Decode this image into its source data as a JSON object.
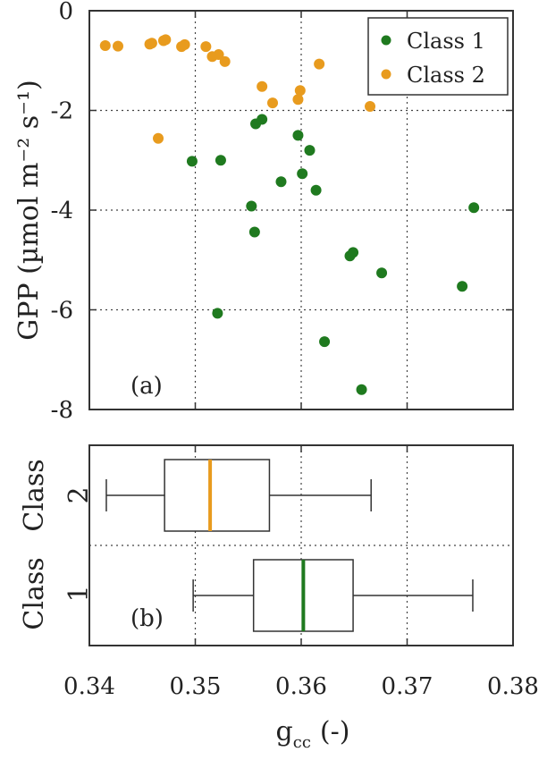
{
  "chart_data": [
    {
      "type": "scatter",
      "panel_label": "(a)",
      "ylabel": "GPP (µmol m⁻² s⁻¹)",
      "xlim": [
        0.34,
        0.38
      ],
      "ylim": [
        -8,
        0
      ],
      "xticks": [
        0.34,
        0.35,
        0.36,
        0.37,
        0.38
      ],
      "yticks": [
        -8,
        -6,
        -4,
        -2,
        0
      ],
      "ytick_labels": [
        "-8",
        "-6",
        "-4",
        "-2",
        "0"
      ],
      "grid": true,
      "legend": {
        "position": "top-right"
      },
      "series": [
        {
          "name": "Class 1",
          "color": "#1f7a1f",
          "points": [
            [
              0.3497,
              -3.02
            ],
            [
              0.3524,
              -3.0
            ],
            [
              0.3521,
              -6.07
            ],
            [
              0.3553,
              -3.92
            ],
            [
              0.3557,
              -2.27
            ],
            [
              0.3563,
              -2.18
            ],
            [
              0.3556,
              -4.44
            ],
            [
              0.3581,
              -3.43
            ],
            [
              0.3597,
              -2.5
            ],
            [
              0.3601,
              -3.27
            ],
            [
              0.3608,
              -2.8
            ],
            [
              0.3614,
              -3.6
            ],
            [
              0.3622,
              -6.64
            ],
            [
              0.3646,
              -4.92
            ],
            [
              0.3649,
              -4.85
            ],
            [
              0.3657,
              -7.6
            ],
            [
              0.3676,
              -5.26
            ],
            [
              0.3752,
              -5.53
            ],
            [
              0.3763,
              -3.95
            ]
          ]
        },
        {
          "name": "Class 2",
          "color": "#e89b1e",
          "points": [
            [
              0.3415,
              -0.7
            ],
            [
              0.3427,
              -0.71
            ],
            [
              0.3457,
              -0.67
            ],
            [
              0.3459,
              -0.65
            ],
            [
              0.347,
              -0.6
            ],
            [
              0.3472,
              -0.58
            ],
            [
              0.3487,
              -0.72
            ],
            [
              0.349,
              -0.68
            ],
            [
              0.351,
              -0.72
            ],
            [
              0.3516,
              -0.92
            ],
            [
              0.3522,
              -0.88
            ],
            [
              0.3528,
              -1.02
            ],
            [
              0.3465,
              -2.56
            ],
            [
              0.3563,
              -1.52
            ],
            [
              0.3573,
              -1.85
            ],
            [
              0.3597,
              -1.78
            ],
            [
              0.3599,
              -1.6
            ],
            [
              0.3617,
              -1.07
            ],
            [
              0.3665,
              -1.92
            ]
          ]
        }
      ]
    },
    {
      "type": "box",
      "panel_label": "(b)",
      "xlabel": "g_cc (-)",
      "xlabel_main": "g",
      "xlabel_sub": "cc",
      "xlabel_rest": "(-)",
      "xlim": [
        0.34,
        0.38
      ],
      "xticks": [
        0.34,
        0.35,
        0.36,
        0.37,
        0.38
      ],
      "xtick_labels": [
        "0.34",
        "0.35",
        "0.36",
        "0.37",
        "0.38"
      ],
      "grid": true,
      "boxes": [
        {
          "category": "Class 2",
          "line1": "Class",
          "line2": "2",
          "color": "#e89b1e",
          "whisker_low": 0.3416,
          "q1": 0.3471,
          "median": 0.3514,
          "q3": 0.357,
          "whisker_high": 0.3666
        },
        {
          "category": "Class 1",
          "line1": "Class",
          "line2": "1",
          "color": "#1f7a1f",
          "whisker_low": 0.3498,
          "q1": 0.3555,
          "median": 0.3602,
          "q3": 0.3649,
          "whisker_high": 0.3762
        }
      ]
    }
  ]
}
